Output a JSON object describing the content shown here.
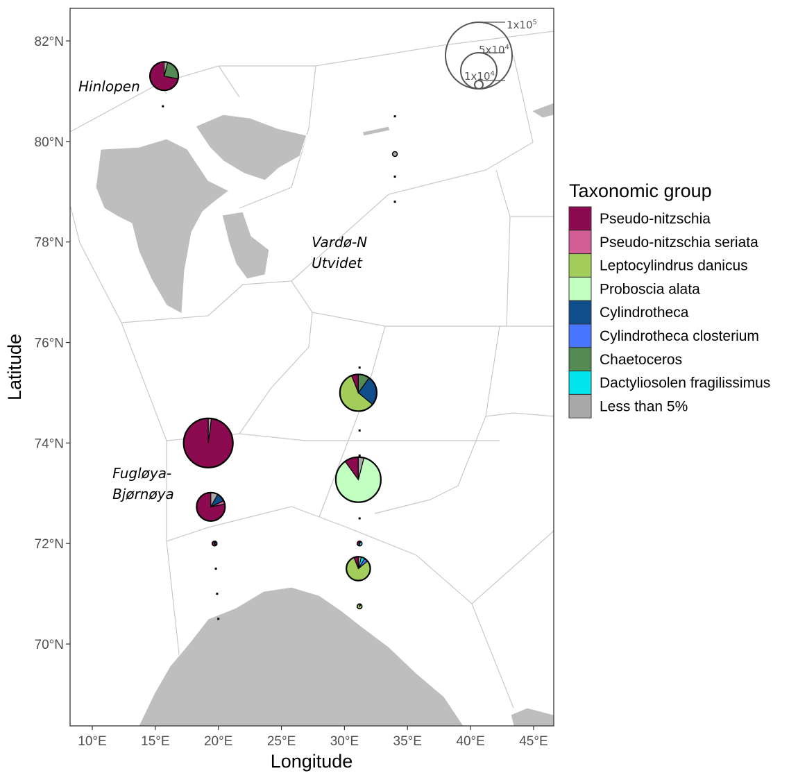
{
  "chart_data": {
    "type": "map-pie",
    "xlabel": "Longitude",
    "ylabel": "Latitude",
    "xlim": [
      8.5,
      46.5
    ],
    "ylim": [
      68.4,
      82.65
    ],
    "x_ticks": [
      "10°E",
      "15°E",
      "20°E",
      "25°E",
      "30°E",
      "35°E",
      "40°E",
      "45°E"
    ],
    "x_tick_values": [
      10,
      15,
      20,
      25,
      30,
      35,
      40,
      45
    ],
    "y_ticks": [
      "70°N",
      "72°N",
      "74°N",
      "76°N",
      "78°N",
      "80°N",
      "82°N"
    ],
    "y_tick_values": [
      70,
      72,
      74,
      76,
      78,
      80,
      82
    ],
    "region_labels": [
      {
        "lines": [
          "Hinlopen"
        ],
        "lon": 8.9,
        "lat": 81.0
      },
      {
        "lines": [
          "Vardø-N",
          "Utvidet"
        ],
        "lon": 27.4,
        "lat": 77.9
      },
      {
        "lines": [
          "Fugløya-",
          "Bjørnøya"
        ],
        "lon": 11.6,
        "lat": 73.3
      }
    ],
    "legend": {
      "title": "Taxonomic group",
      "placement": "right",
      "groups": [
        {
          "name": "Pseudo-nitzschia",
          "color": "#8B0A50"
        },
        {
          "name": "Pseudo-nitzschia seriata",
          "color": "#D25E93"
        },
        {
          "name": "Leptocylindrus danicus",
          "color": "#A2CD5A"
        },
        {
          "name": "Proboscia alata",
          "color": "#C1FFC1"
        },
        {
          "name": "Cylindrotheca",
          "color": "#104E8B"
        },
        {
          "name": "Cylindrotheca closterium",
          "color": "#4876FF"
        },
        {
          "name": "Chaetoceros",
          "color": "#548B54"
        },
        {
          "name": "Dactyliosolen fragilissimus",
          "color": "#00E5EE"
        },
        {
          "name": "Less than 5%",
          "color": "#A9A9A9"
        }
      ]
    },
    "size_legend": [
      {
        "label_base": "1x10",
        "label_exp": "5",
        "value": 100000
      },
      {
        "label_base": "5x10",
        "label_exp": "4",
        "value": 50000
      },
      {
        "label_base": "1x10",
        "label_exp": "4",
        "value": 10000
      }
    ],
    "stations": [
      {
        "lon": 15.7,
        "lat": 81.3,
        "total": 15000,
        "fractions": [
          0.72,
          0,
          0,
          0,
          0,
          0,
          0.24,
          0,
          0.04
        ]
      },
      {
        "lon": 31.1,
        "lat": 75.0,
        "total": 30000,
        "fractions": [
          0.06,
          0,
          0.58,
          0,
          0.26,
          0,
          0.1,
          0,
          0
        ]
      },
      {
        "lon": 19.2,
        "lat": 74.0,
        "total": 62000,
        "fractions": [
          0.98,
          0,
          0,
          0,
          0,
          0,
          0,
          0,
          0.02
        ]
      },
      {
        "lon": 31.1,
        "lat": 73.27,
        "total": 50000,
        "fractions": [
          0.1,
          0,
          0,
          0.86,
          0,
          0,
          0,
          0,
          0.04
        ]
      },
      {
        "lon": 19.4,
        "lat": 72.73,
        "total": 15000,
        "fractions": [
          0.78,
          0.04,
          0,
          0,
          0.1,
          0,
          0,
          0,
          0.08
        ]
      },
      {
        "lon": 31.1,
        "lat": 71.5,
        "total": 9000,
        "fractions": [
          0.06,
          0,
          0.8,
          0,
          0,
          0.05,
          0,
          0.05,
          0.04
        ]
      },
      {
        "lon": 19.7,
        "lat": 72.0,
        "total": 800,
        "fractions": [
          0.6,
          0,
          0,
          0,
          0.3,
          0,
          0,
          0,
          0.1
        ]
      },
      {
        "lon": 31.2,
        "lat": 72.0,
        "total": 800,
        "fractions": [
          0.5,
          0,
          0,
          0,
          0,
          0,
          0,
          0.4,
          0.1
        ]
      },
      {
        "lon": 31.2,
        "lat": 70.75,
        "total": 500,
        "fractions": [
          0,
          0,
          0.9,
          0,
          0,
          0,
          0,
          0,
          0.1
        ]
      },
      {
        "lon": 34.0,
        "lat": 79.75,
        "total": 400,
        "fractions": [
          0,
          0,
          0,
          0,
          0,
          0,
          0,
          0,
          1
        ]
      },
      {
        "lon": 31.2,
        "lat": 75.5,
        "total": 60,
        "fractions": [
          0,
          0,
          0,
          0,
          0,
          0,
          0,
          0,
          1
        ]
      },
      {
        "lon": 31.2,
        "lat": 74.25,
        "total": 60,
        "fractions": [
          0,
          0,
          0,
          0,
          0,
          0,
          0,
          0,
          1
        ]
      },
      {
        "lon": 31.2,
        "lat": 73.75,
        "total": 60,
        "fractions": [
          0,
          0,
          0,
          0,
          0,
          0,
          0,
          0,
          1
        ]
      },
      {
        "lon": 31.2,
        "lat": 72.5,
        "total": 60,
        "fractions": [
          0,
          0,
          0,
          0,
          0,
          0,
          0,
          0,
          1
        ]
      },
      {
        "lon": 19.8,
        "lat": 71.5,
        "total": 40,
        "fractions": [
          0,
          0,
          0,
          0,
          0,
          0,
          0,
          0,
          1
        ]
      },
      {
        "lon": 19.9,
        "lat": 71.0,
        "total": 60,
        "fractions": [
          0,
          0,
          0,
          0,
          0,
          0,
          0,
          0,
          1
        ]
      },
      {
        "lon": 15.6,
        "lat": 80.7,
        "total": 20,
        "fractions": [
          0,
          0,
          0,
          0,
          0,
          0,
          0,
          0,
          1
        ]
      },
      {
        "lon": 20.0,
        "lat": 70.5,
        "total": 20,
        "fractions": [
          0,
          0,
          0,
          0,
          0,
          0,
          0,
          0,
          1
        ]
      },
      {
        "lon": 34.0,
        "lat": 80.5,
        "total": 20,
        "fractions": [
          0,
          0,
          0,
          0,
          0,
          0,
          0,
          0,
          1
        ]
      },
      {
        "lon": 34.0,
        "lat": 79.3,
        "total": 20,
        "fractions": [
          0,
          0,
          0,
          0,
          0,
          0,
          0,
          0,
          1
        ]
      },
      {
        "lon": 34.0,
        "lat": 78.8,
        "total": 20,
        "fractions": [
          0,
          0,
          0,
          0,
          0,
          0,
          0,
          0,
          1
        ]
      }
    ]
  }
}
